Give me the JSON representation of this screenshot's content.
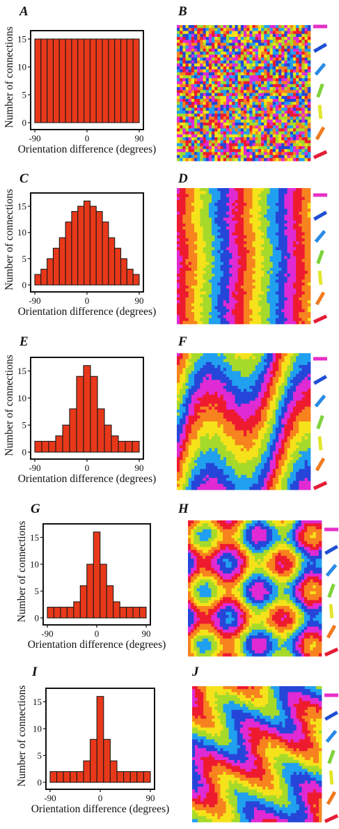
{
  "colors": {
    "bar_fill": "#e8381a",
    "bar_stroke": "#1a1a1a",
    "palette": [
      "#ee1b2f",
      "#f7831f",
      "#f5e21a",
      "#a6da2a",
      "#21a0f0",
      "#2546d8",
      "#e02ad4"
    ],
    "key_bars": [
      "#e82ec8",
      "#1f4fd4",
      "#2a8ae6",
      "#7fd23a",
      "#e3e62c",
      "#f07a1e",
      "#e51d37"
    ]
  },
  "panels": [
    {
      "hist_letter": "A",
      "map_letter": "B",
      "map_pattern": "random",
      "chart_ref": 0
    },
    {
      "hist_letter": "C",
      "map_letter": "D",
      "map_pattern": "stripes",
      "chart_ref": 1
    },
    {
      "hist_letter": "E",
      "map_letter": "F",
      "map_pattern": "zigzag",
      "chart_ref": 2
    },
    {
      "hist_letter": "G",
      "map_letter": "H",
      "map_pattern": "checker",
      "chart_ref": 3
    },
    {
      "hist_letter": "I",
      "map_letter": "J",
      "map_pattern": "diagonal",
      "chart_ref": 4
    }
  ],
  "chart_data": [
    {
      "type": "bar",
      "panel": "A",
      "xlabel": "Orientation difference (degrees)",
      "ylabel": "Number of connections",
      "xticks": [
        "-90",
        "0",
        "90"
      ],
      "yticks": [
        0,
        5,
        10,
        15
      ],
      "xlim": [
        -90,
        90
      ],
      "ylim": [
        0,
        16
      ],
      "values": [
        15,
        15,
        15,
        15,
        15,
        15,
        15,
        15,
        15,
        15,
        15,
        15,
        15,
        15,
        15,
        15,
        15
      ]
    },
    {
      "type": "bar",
      "panel": "C",
      "xlabel": "Orientation difference (degrees)",
      "ylabel": "Number of connections",
      "xticks": [
        "-90",
        "0",
        "90"
      ],
      "yticks": [
        0,
        5,
        10,
        15
      ],
      "xlim": [
        -90,
        90
      ],
      "ylim": [
        0,
        17
      ],
      "values": [
        2,
        3,
        5,
        7,
        9,
        12,
        14,
        15,
        16,
        15,
        14,
        12,
        9,
        7,
        5,
        3,
        2
      ]
    },
    {
      "type": "bar",
      "panel": "E",
      "xlabel": "Orientation difference (degrees)",
      "ylabel": "Number of connections",
      "xticks": [
        "-90",
        "0",
        "90"
      ],
      "yticks": [
        0,
        5,
        10,
        15
      ],
      "xlim": [
        -90,
        90
      ],
      "ylim": [
        0,
        17
      ],
      "values": [
        2,
        2,
        2,
        3,
        5,
        8,
        14,
        16,
        14,
        8,
        5,
        3,
        2,
        2,
        2
      ]
    },
    {
      "type": "bar",
      "panel": "G",
      "xlabel": "Orientation difference (degrees)",
      "ylabel": "Number of connections",
      "xticks": [
        "-90",
        "0",
        "90"
      ],
      "yticks": [
        0,
        5,
        10,
        15
      ],
      "xlim": [
        -90,
        90
      ],
      "ylim": [
        0,
        17
      ],
      "values": [
        2,
        2,
        2,
        2,
        3,
        6,
        10,
        16,
        10,
        6,
        3,
        2,
        2,
        2,
        2
      ]
    },
    {
      "type": "bar",
      "panel": "I",
      "xlabel": "Orientation difference (degrees)",
      "ylabel": "Number of connections",
      "xticks": [
        "-90",
        "0",
        "90"
      ],
      "yticks": [
        0,
        5,
        10,
        15
      ],
      "xlim": [
        -90,
        90
      ],
      "ylim": [
        0,
        17
      ],
      "values": [
        2,
        2,
        2,
        2,
        2,
        4,
        8,
        16,
        8,
        4,
        2,
        2,
        2,
        2,
        2
      ]
    }
  ]
}
